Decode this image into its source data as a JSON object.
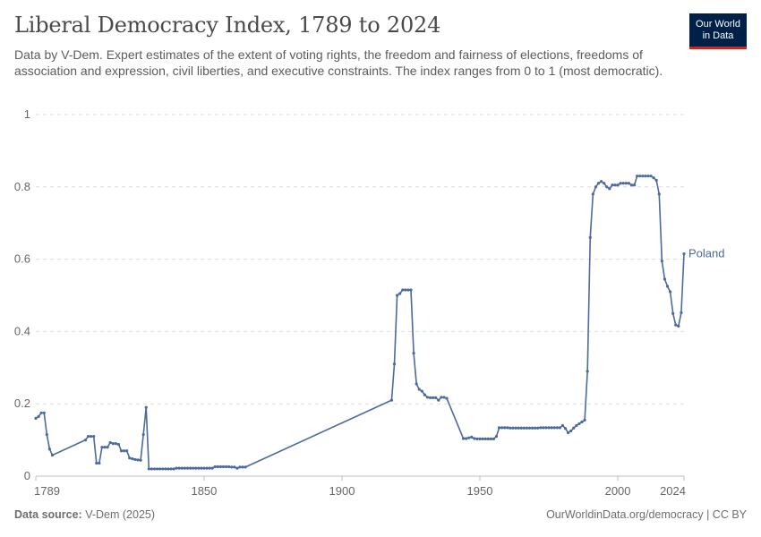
{
  "header": {
    "title": "Liberal Democracy Index, 1789 to 2024",
    "subtitle": "Data by V-Dem. Expert estimates of the extent of voting rights, the freedom and fairness of elections, freedoms of association and expression, civil liberties, and executive constraints. The index ranges from 0 to 1 (most democratic).",
    "logo_line1": "Our World",
    "logo_line2": "in Data"
  },
  "footer": {
    "source_label": "Data source:",
    "source_value": "V-Dem (2025)",
    "url": "OurWorldinData.org/democracy | CC BY"
  },
  "colors": {
    "series": "#4c6a9c",
    "logo_bg": "#002147",
    "logo_accent": "#ce261e"
  },
  "chart_data": {
    "type": "line",
    "title": "Liberal Democracy Index, 1789 to 2024",
    "xlabel": "",
    "ylabel": "",
    "xlim": [
      1789,
      2024
    ],
    "ylim": [
      0,
      1
    ],
    "x_ticks": [
      "1789",
      "1850",
      "1900",
      "1950",
      "2000",
      "2024"
    ],
    "y_ticks": [
      "0",
      "0.2",
      "0.4",
      "0.6",
      "0.8",
      "1"
    ],
    "grid": "horizontal dashed",
    "legend": "inline label at line end",
    "series": [
      {
        "name": "Poland",
        "points": [
          [
            1789,
            0.16
          ],
          [
            1790,
            0.165
          ],
          [
            1791,
            0.175
          ],
          [
            1792,
            0.175
          ],
          [
            1793,
            0.115
          ],
          [
            1794,
            0.075
          ],
          [
            1795,
            0.058
          ],
          [
            1807,
            0.1
          ],
          [
            1808,
            0.11
          ],
          [
            1809,
            0.11
          ],
          [
            1810,
            0.11
          ],
          [
            1811,
            0.036
          ],
          [
            1812,
            0.036
          ],
          [
            1813,
            0.08
          ],
          [
            1814,
            0.08
          ],
          [
            1815,
            0.08
          ],
          [
            1816,
            0.093
          ],
          [
            1817,
            0.09
          ],
          [
            1818,
            0.09
          ],
          [
            1819,
            0.088
          ],
          [
            1820,
            0.07
          ],
          [
            1821,
            0.07
          ],
          [
            1822,
            0.07
          ],
          [
            1823,
            0.05
          ],
          [
            1824,
            0.048
          ],
          [
            1825,
            0.046
          ],
          [
            1826,
            0.045
          ],
          [
            1827,
            0.044
          ],
          [
            1828,
            0.115
          ],
          [
            1829,
            0.19
          ],
          [
            1830,
            0.02
          ],
          [
            1831,
            0.02
          ],
          [
            1832,
            0.02
          ],
          [
            1833,
            0.02
          ],
          [
            1834,
            0.02
          ],
          [
            1835,
            0.02
          ],
          [
            1836,
            0.02
          ],
          [
            1837,
            0.02
          ],
          [
            1838,
            0.02
          ],
          [
            1839,
            0.02
          ],
          [
            1840,
            0.022
          ],
          [
            1841,
            0.022
          ],
          [
            1842,
            0.022
          ],
          [
            1843,
            0.022
          ],
          [
            1844,
            0.022
          ],
          [
            1845,
            0.022
          ],
          [
            1846,
            0.022
          ],
          [
            1847,
            0.022
          ],
          [
            1848,
            0.022
          ],
          [
            1849,
            0.022
          ],
          [
            1850,
            0.022
          ],
          [
            1851,
            0.022
          ],
          [
            1852,
            0.022
          ],
          [
            1853,
            0.022
          ],
          [
            1854,
            0.026
          ],
          [
            1855,
            0.026
          ],
          [
            1856,
            0.026
          ],
          [
            1857,
            0.026
          ],
          [
            1858,
            0.026
          ],
          [
            1859,
            0.026
          ],
          [
            1860,
            0.025
          ],
          [
            1861,
            0.025
          ],
          [
            1862,
            0.022
          ],
          [
            1863,
            0.025
          ],
          [
            1864,
            0.025
          ],
          [
            1865,
            0.025
          ],
          [
            1918,
            0.21
          ],
          [
            1919,
            0.31
          ],
          [
            1920,
            0.5
          ],
          [
            1921,
            0.505
          ],
          [
            1922,
            0.515
          ],
          [
            1923,
            0.515
          ],
          [
            1924,
            0.515
          ],
          [
            1925,
            0.515
          ],
          [
            1926,
            0.34
          ],
          [
            1927,
            0.255
          ],
          [
            1928,
            0.24
          ],
          [
            1929,
            0.235
          ],
          [
            1930,
            0.225
          ],
          [
            1931,
            0.218
          ],
          [
            1932,
            0.217
          ],
          [
            1933,
            0.217
          ],
          [
            1934,
            0.217
          ],
          [
            1935,
            0.21
          ],
          [
            1936,
            0.218
          ],
          [
            1937,
            0.218
          ],
          [
            1938,
            0.215
          ],
          [
            1944,
            0.104
          ],
          [
            1945,
            0.104
          ],
          [
            1946,
            0.106
          ],
          [
            1947,
            0.108
          ],
          [
            1948,
            0.104
          ],
          [
            1949,
            0.103
          ],
          [
            1950,
            0.103
          ],
          [
            1951,
            0.103
          ],
          [
            1952,
            0.103
          ],
          [
            1953,
            0.103
          ],
          [
            1954,
            0.103
          ],
          [
            1955,
            0.103
          ],
          [
            1956,
            0.11
          ],
          [
            1957,
            0.134
          ],
          [
            1958,
            0.134
          ],
          [
            1959,
            0.134
          ],
          [
            1960,
            0.134
          ],
          [
            1961,
            0.133
          ],
          [
            1962,
            0.133
          ],
          [
            1963,
            0.133
          ],
          [
            1964,
            0.133
          ],
          [
            1965,
            0.133
          ],
          [
            1966,
            0.133
          ],
          [
            1967,
            0.133
          ],
          [
            1968,
            0.133
          ],
          [
            1969,
            0.133
          ],
          [
            1970,
            0.133
          ],
          [
            1971,
            0.133
          ],
          [
            1972,
            0.134
          ],
          [
            1973,
            0.134
          ],
          [
            1974,
            0.134
          ],
          [
            1975,
            0.134
          ],
          [
            1976,
            0.134
          ],
          [
            1977,
            0.134
          ],
          [
            1978,
            0.134
          ],
          [
            1979,
            0.134
          ],
          [
            1980,
            0.14
          ],
          [
            1981,
            0.132
          ],
          [
            1982,
            0.12
          ],
          [
            1983,
            0.125
          ],
          [
            1984,
            0.133
          ],
          [
            1985,
            0.14
          ],
          [
            1986,
            0.145
          ],
          [
            1987,
            0.15
          ],
          [
            1988,
            0.155
          ],
          [
            1989,
            0.29
          ],
          [
            1990,
            0.66
          ],
          [
            1991,
            0.78
          ],
          [
            1992,
            0.8
          ],
          [
            1993,
            0.81
          ],
          [
            1994,
            0.815
          ],
          [
            1995,
            0.81
          ],
          [
            1996,
            0.8
          ],
          [
            1997,
            0.795
          ],
          [
            1998,
            0.805
          ],
          [
            1999,
            0.805
          ],
          [
            2000,
            0.805
          ],
          [
            2001,
            0.81
          ],
          [
            2002,
            0.81
          ],
          [
            2003,
            0.81
          ],
          [
            2004,
            0.81
          ],
          [
            2005,
            0.805
          ],
          [
            2006,
            0.805
          ],
          [
            2007,
            0.83
          ],
          [
            2008,
            0.83
          ],
          [
            2009,
            0.83
          ],
          [
            2010,
            0.83
          ],
          [
            2011,
            0.83
          ],
          [
            2012,
            0.83
          ],
          [
            2013,
            0.825
          ],
          [
            2014,
            0.818
          ],
          [
            2015,
            0.78
          ],
          [
            2016,
            0.595
          ],
          [
            2017,
            0.545
          ],
          [
            2018,
            0.525
          ],
          [
            2019,
            0.51
          ],
          [
            2020,
            0.45
          ],
          [
            2021,
            0.418
          ],
          [
            2022,
            0.415
          ],
          [
            2023,
            0.452
          ],
          [
            2024,
            0.615
          ]
        ]
      }
    ]
  }
}
